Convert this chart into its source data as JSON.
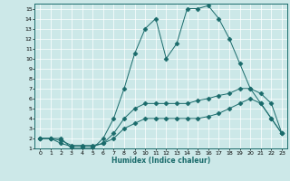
{
  "xlabel": "Humidex (Indice chaleur)",
  "ylabel": "",
  "xlim": [
    -0.5,
    23.5
  ],
  "ylim": [
    1,
    15.5
  ],
  "xticks": [
    0,
    1,
    2,
    3,
    4,
    5,
    6,
    7,
    8,
    9,
    10,
    11,
    12,
    13,
    14,
    15,
    16,
    17,
    18,
    19,
    20,
    21,
    22,
    23
  ],
  "yticks": [
    1,
    2,
    3,
    4,
    5,
    6,
    7,
    8,
    9,
    10,
    11,
    12,
    13,
    14,
    15
  ],
  "bg_color": "#cce8e8",
  "line_color": "#1a6b6b",
  "lines": [
    {
      "x": [
        0,
        1,
        2,
        3,
        4,
        5,
        6,
        7,
        8,
        9,
        10,
        11,
        12,
        13,
        14,
        15,
        16,
        17,
        18,
        19,
        20,
        21,
        22,
        23
      ],
      "y": [
        2,
        2,
        2,
        1,
        1,
        1,
        2,
        4,
        7,
        10.5,
        13,
        14,
        10,
        11.5,
        15,
        15,
        15.3,
        14,
        12,
        9.5,
        7,
        5.5,
        4,
        2.5
      ]
    },
    {
      "x": [
        0,
        1,
        2,
        3,
        4,
        5,
        6,
        7,
        8,
        9,
        10,
        11,
        12,
        13,
        14,
        15,
        16,
        17,
        18,
        19,
        20,
        21,
        22,
        23
      ],
      "y": [
        2,
        2,
        1.5,
        1.2,
        1.2,
        1.2,
        1.5,
        2.5,
        4,
        5,
        5.5,
        5.5,
        5.5,
        5.5,
        5.5,
        5.8,
        6,
        6.3,
        6.5,
        7,
        7,
        6.5,
        5.5,
        2.5
      ]
    },
    {
      "x": [
        0,
        1,
        2,
        3,
        4,
        5,
        6,
        7,
        8,
        9,
        10,
        11,
        12,
        13,
        14,
        15,
        16,
        17,
        18,
        19,
        20,
        21,
        22,
        23
      ],
      "y": [
        2,
        2,
        1.8,
        1.3,
        1.3,
        1.3,
        1.5,
        2,
        3,
        3.5,
        4,
        4,
        4,
        4,
        4,
        4,
        4.2,
        4.5,
        5,
        5.5,
        6,
        5.5,
        4,
        2.5
      ]
    }
  ]
}
